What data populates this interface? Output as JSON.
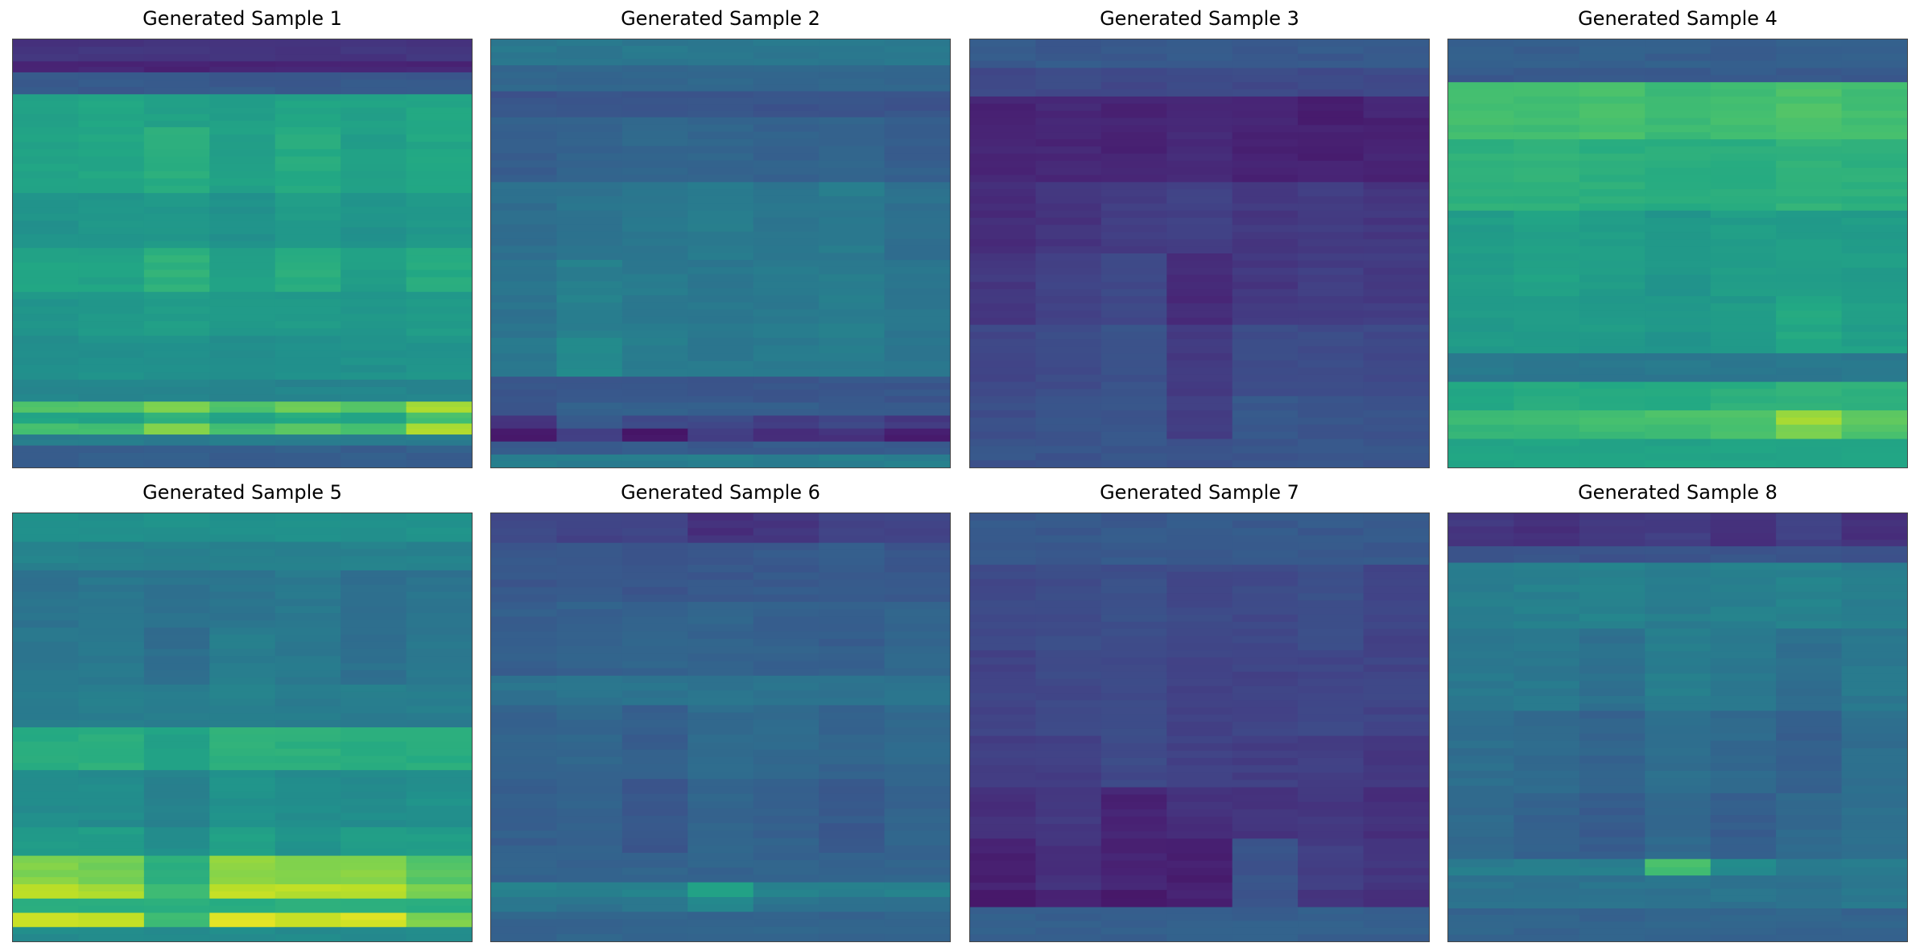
{
  "chart_data": [
    {
      "type": "heatmap",
      "title": "Generated Sample 1",
      "colormap": "viridis",
      "vmin": 0,
      "vmax": 1,
      "cols": 7,
      "rows": [
        {
          "h": 2,
          "base": 0.15,
          "cells": [
            0,
            0,
            0,
            0,
            0,
            0,
            0
          ]
        },
        {
          "h": 1,
          "base": 0.1,
          "cells": [
            0,
            0,
            0,
            0,
            0,
            0,
            0
          ]
        },
        {
          "h": 2,
          "base": 0.28,
          "cells": [
            0,
            0,
            0,
            0,
            0,
            0,
            0
          ]
        },
        {
          "h": 3,
          "base": 0.55,
          "cells": [
            0.02,
            0.04,
            0.02,
            0.01,
            0.03,
            0.02,
            0.04
          ]
        },
        {
          "h": 6,
          "base": 0.56,
          "cells": [
            0.02,
            0.03,
            0.06,
            0.01,
            0.05,
            0.0,
            0.03
          ]
        },
        {
          "h": 5,
          "base": 0.5,
          "cells": [
            0.01,
            0.02,
            0.03,
            0.0,
            0.04,
            0.01,
            0.03
          ]
        },
        {
          "h": 4,
          "base": 0.56,
          "cells": [
            0.02,
            0.02,
            0.08,
            0.01,
            0.06,
            0.0,
            0.05
          ]
        },
        {
          "h": 4,
          "base": 0.52,
          "cells": [
            0.0,
            0.01,
            0.03,
            0.01,
            0.02,
            0.01,
            0.02
          ]
        },
        {
          "h": 4,
          "base": 0.48,
          "cells": [
            0.01,
            0.02,
            0.02,
            0.0,
            0.01,
            0.02,
            0.03
          ]
        },
        {
          "h": 2,
          "base": 0.45,
          "cells": [
            0,
            0,
            0,
            0,
            0,
            0,
            0
          ]
        },
        {
          "h": 1,
          "base": 0.72,
          "cells": [
            0.0,
            0.0,
            0.08,
            0.0,
            0.05,
            0.0,
            0.15
          ]
        },
        {
          "h": 1,
          "base": 0.58,
          "cells": [
            0.0,
            0.0,
            0.06,
            0.0,
            0.03,
            0.0,
            0.12
          ]
        },
        {
          "h": 1,
          "base": 0.7,
          "cells": [
            0.0,
            0.0,
            0.1,
            0.0,
            0.04,
            0.0,
            0.18
          ]
        },
        {
          "h": 1,
          "base": 0.42,
          "cells": [
            0,
            0,
            0,
            0,
            0,
            0,
            0
          ]
        },
        {
          "h": 2,
          "base": 0.3,
          "cells": [
            0,
            0,
            0,
            0,
            0,
            0,
            0
          ]
        }
      ]
    },
    {
      "type": "heatmap",
      "title": "Generated Sample 2",
      "colormap": "viridis",
      "vmin": 0,
      "vmax": 1,
      "cols": 7,
      "rows": [
        {
          "h": 2,
          "base": 0.4,
          "cells": [
            0,
            0,
            0,
            0,
            0,
            0,
            0
          ]
        },
        {
          "h": 2,
          "base": 0.33,
          "cells": [
            0,
            0,
            0,
            0,
            0,
            0,
            0
          ]
        },
        {
          "h": 2,
          "base": 0.26,
          "cells": [
            0,
            0,
            0,
            0,
            0,
            0,
            0
          ]
        },
        {
          "h": 5,
          "base": 0.3,
          "cells": [
            0.0,
            0.01,
            0.03,
            0.02,
            0.01,
            0.02,
            0.0
          ]
        },
        {
          "h": 6,
          "base": 0.36,
          "cells": [
            0.0,
            0.02,
            0.04,
            0.05,
            0.03,
            0.05,
            0.01
          ]
        },
        {
          "h": 6,
          "base": 0.38,
          "cells": [
            0.0,
            0.05,
            0.03,
            0.02,
            0.03,
            0.04,
            0.01
          ]
        },
        {
          "h": 3,
          "base": 0.4,
          "cells": [
            0.0,
            0.06,
            0.02,
            0.0,
            0.01,
            0.02,
            0.0
          ]
        },
        {
          "h": 2,
          "base": 0.27,
          "cells": [
            0,
            0,
            0,
            0,
            0,
            0,
            0
          ]
        },
        {
          "h": 1,
          "base": 0.3,
          "cells": [
            -0.05,
            0.02,
            0.0,
            0.0,
            0.0,
            0.0,
            -0.03
          ]
        },
        {
          "h": 1,
          "base": 0.22,
          "cells": [
            -0.08,
            0.05,
            0.0,
            0.0,
            -0.05,
            0.0,
            -0.06
          ]
        },
        {
          "h": 1,
          "base": 0.12,
          "cells": [
            -0.04,
            0.06,
            -0.05,
            0.05,
            0.0,
            0.02,
            -0.04
          ]
        },
        {
          "h": 1,
          "base": 0.28,
          "cells": [
            0,
            0,
            0,
            0,
            0,
            0,
            0
          ]
        },
        {
          "h": 1,
          "base": 0.42,
          "cells": [
            0,
            0,
            0,
            0,
            0,
            0,
            0
          ]
        }
      ]
    },
    {
      "type": "heatmap",
      "title": "Generated Sample 3",
      "colormap": "viridis",
      "vmin": 0,
      "vmax": 1,
      "cols": 7,
      "rows": [
        {
          "h": 2,
          "base": 0.28,
          "cells": [
            0,
            0,
            0,
            0,
            0,
            0,
            0
          ]
        },
        {
          "h": 2,
          "base": 0.22,
          "cells": [
            0,
            0,
            0,
            0,
            0,
            0,
            0
          ]
        },
        {
          "h": 6,
          "base": 0.1,
          "cells": [
            0.0,
            0.01,
            0.0,
            0.02,
            0.0,
            -0.01,
            0.0
          ]
        },
        {
          "h": 5,
          "base": 0.13,
          "cells": [
            0.0,
            0.02,
            0.05,
            0.06,
            0.03,
            0.04,
            0.03
          ]
        },
        {
          "h": 5,
          "base": 0.12,
          "cells": [
            0.04,
            0.08,
            0.1,
            0.0,
            0.04,
            0.06,
            0.05
          ]
        },
        {
          "h": 5,
          "base": 0.17,
          "cells": [
            0.04,
            0.06,
            0.08,
            0.0,
            0.06,
            0.06,
            0.05
          ]
        },
        {
          "h": 3,
          "base": 0.18,
          "cells": [
            0.06,
            0.08,
            0.08,
            0.0,
            0.1,
            0.08,
            0.08
          ]
        },
        {
          "h": 2,
          "base": 0.26,
          "cells": [
            0,
            0,
            0,
            0,
            0,
            0,
            0
          ]
        }
      ]
    },
    {
      "type": "heatmap",
      "title": "Generated Sample 4",
      "colormap": "viridis",
      "vmin": 0,
      "vmax": 1,
      "cols": 7,
      "rows": [
        {
          "h": 2,
          "base": 0.3,
          "cells": [
            0,
            0,
            0,
            0,
            0,
            0,
            0
          ]
        },
        {
          "h": 1,
          "base": 0.28,
          "cells": [
            0,
            0,
            0,
            0,
            0,
            0,
            0
          ]
        },
        {
          "h": 4,
          "base": 0.68,
          "cells": [
            0.02,
            0.01,
            0.02,
            0.0,
            0.01,
            0.03,
            0.01
          ]
        },
        {
          "h": 5,
          "base": 0.62,
          "cells": [
            0.02,
            0.02,
            0.01,
            0.0,
            0.01,
            0.02,
            0.01
          ]
        },
        {
          "h": 6,
          "base": 0.55,
          "cells": [
            0.0,
            0.02,
            0.0,
            -0.03,
            0.0,
            0.0,
            0.0
          ]
        },
        {
          "h": 4,
          "base": 0.54,
          "cells": [
            0.0,
            0.0,
            0.0,
            -0.02,
            0.0,
            0.06,
            0.02
          ]
        },
        {
          "h": 2,
          "base": 0.4,
          "cells": [
            0,
            0,
            0,
            0,
            0,
            0,
            0
          ]
        },
        {
          "h": 2,
          "base": 0.6,
          "cells": [
            0.0,
            0.01,
            0.01,
            0.02,
            0.03,
            0.05,
            0.03
          ]
        },
        {
          "h": 1,
          "base": 0.68,
          "cells": [
            0.0,
            0.0,
            0.02,
            0.03,
            0.04,
            0.18,
            0.08
          ]
        },
        {
          "h": 1,
          "base": 0.66,
          "cells": [
            0.0,
            0.01,
            0.02,
            0.03,
            0.05,
            0.14,
            0.06
          ]
        },
        {
          "h": 2,
          "base": 0.58,
          "cells": [
            0,
            0,
            0,
            0,
            0,
            0,
            0
          ]
        }
      ]
    },
    {
      "type": "heatmap",
      "title": "Generated Sample 5",
      "colormap": "viridis",
      "vmin": 0,
      "vmax": 1,
      "cols": 7,
      "rows": [
        {
          "h": 2,
          "base": 0.5,
          "cells": [
            0,
            0,
            0,
            0,
            0,
            0,
            0
          ]
        },
        {
          "h": 2,
          "base": 0.44,
          "cells": [
            0,
            0,
            0,
            0,
            0,
            0,
            0
          ]
        },
        {
          "h": 4,
          "base": 0.38,
          "cells": [
            0.0,
            0.01,
            0.0,
            0.0,
            0.02,
            -0.02,
            0.0
          ]
        },
        {
          "h": 4,
          "base": 0.4,
          "cells": [
            0.0,
            0.0,
            -0.04,
            0.02,
            0.0,
            -0.03,
            0.0
          ]
        },
        {
          "h": 3,
          "base": 0.42,
          "cells": [
            0.0,
            0.0,
            0.0,
            0.02,
            0.0,
            0.0,
            0.0
          ]
        },
        {
          "h": 3,
          "base": 0.62,
          "cells": [
            0.0,
            0.01,
            -0.05,
            0.02,
            0.01,
            0.0,
            0.0
          ]
        },
        {
          "h": 4,
          "base": 0.48,
          "cells": [
            0.0,
            0.0,
            -0.04,
            0.02,
            0.0,
            0.0,
            0.02
          ]
        },
        {
          "h": 2,
          "base": 0.55,
          "cells": [
            0.0,
            0.0,
            -0.06,
            0.02,
            -0.04,
            0.0,
            0.0
          ]
        },
        {
          "h": 2,
          "base": 0.78,
          "cells": [
            0.03,
            0.01,
            -0.15,
            0.05,
            0.03,
            0.04,
            -0.05
          ]
        },
        {
          "h": 1,
          "base": 0.85,
          "cells": [
            0.05,
            0.02,
            -0.18,
            0.06,
            0.04,
            0.04,
            -0.05
          ]
        },
        {
          "h": 1,
          "base": 0.62,
          "cells": [
            0,
            0,
            0,
            0,
            0,
            0,
            0
          ]
        },
        {
          "h": 1,
          "base": 0.88,
          "cells": [
            0.05,
            0.02,
            -0.2,
            0.08,
            0.02,
            0.06,
            -0.08
          ]
        },
        {
          "h": 1,
          "base": 0.48,
          "cells": [
            0,
            0,
            0,
            0,
            0,
            0,
            0
          ]
        }
      ]
    },
    {
      "type": "heatmap",
      "title": "Generated Sample 6",
      "colormap": "viridis",
      "vmin": 0,
      "vmax": 1,
      "cols": 7,
      "rows": [
        {
          "h": 2,
          "base": 0.2,
          "cells": [
            0.02,
            0.0,
            0.0,
            -0.06,
            -0.04,
            0.0,
            0.0
          ]
        },
        {
          "h": 4,
          "base": 0.27,
          "cells": [
            0.0,
            0.01,
            0.0,
            0.0,
            0.01,
            0.02,
            0.0
          ]
        },
        {
          "h": 5,
          "base": 0.3,
          "cells": [
            0.0,
            0.01,
            0.02,
            0.02,
            0.01,
            0.0,
            0.03
          ]
        },
        {
          "h": 2,
          "base": 0.38,
          "cells": [
            0,
            0,
            0,
            0,
            0,
            0,
            0
          ]
        },
        {
          "h": 5,
          "base": 0.32,
          "cells": [
            0.0,
            0.01,
            -0.02,
            0.03,
            0.02,
            0.0,
            0.02
          ]
        },
        {
          "h": 5,
          "base": 0.3,
          "cells": [
            0.0,
            0.01,
            -0.03,
            0.02,
            0.01,
            -0.02,
            0.02
          ]
        },
        {
          "h": 2,
          "base": 0.32,
          "cells": [
            0,
            0,
            0,
            0,
            0,
            0,
            0
          ]
        },
        {
          "h": 1,
          "base": 0.44,
          "cells": [
            0.0,
            0.0,
            0.0,
            0.12,
            0.0,
            0.0,
            0.0
          ]
        },
        {
          "h": 1,
          "base": 0.38,
          "cells": [
            0.0,
            0.0,
            0.0,
            0.08,
            0.0,
            0.0,
            0.0
          ]
        },
        {
          "h": 2,
          "base": 0.32,
          "cells": [
            0,
            0,
            0,
            0,
            0,
            0,
            0
          ]
        }
      ]
    },
    {
      "type": "heatmap",
      "title": "Generated Sample 7",
      "colormap": "viridis",
      "vmin": 0,
      "vmax": 1,
      "cols": 7,
      "rows": [
        {
          "h": 3,
          "base": 0.28,
          "cells": [
            0,
            0,
            0,
            0,
            0,
            0,
            0
          ]
        },
        {
          "h": 5,
          "base": 0.22,
          "cells": [
            0.0,
            0.01,
            0.02,
            0.0,
            0.0,
            0.02,
            -0.02
          ]
        },
        {
          "h": 5,
          "base": 0.2,
          "cells": [
            0.0,
            0.02,
            0.03,
            0.0,
            0.0,
            0.01,
            0.0
          ]
        },
        {
          "h": 3,
          "base": 0.18,
          "cells": [
            0.0,
            0.0,
            0.04,
            0.01,
            0.0,
            0.0,
            -0.02
          ]
        },
        {
          "h": 3,
          "base": 0.14,
          "cells": [
            0.0,
            0.02,
            -0.04,
            0.0,
            0.01,
            0.02,
            0.0
          ]
        },
        {
          "h": 3,
          "base": 0.12,
          "cells": [
            -0.03,
            0.02,
            -0.02,
            -0.03,
            0.14,
            0.06,
            0.04
          ]
        },
        {
          "h": 1,
          "base": 0.08,
          "cells": [
            -0.02,
            0.03,
            0.0,
            0.02,
            0.18,
            0.08,
            0.05
          ]
        },
        {
          "h": 2,
          "base": 0.3,
          "cells": [
            0,
            0,
            0,
            0,
            0,
            0,
            0
          ]
        }
      ]
    },
    {
      "type": "heatmap",
      "title": "Generated Sample 8",
      "colormap": "viridis",
      "vmin": 0,
      "vmax": 1,
      "cols": 7,
      "rows": [
        {
          "h": 2,
          "base": 0.14,
          "cells": [
            0.02,
            0.0,
            0.03,
            0.04,
            0.0,
            0.05,
            0.0
          ]
        },
        {
          "h": 1,
          "base": 0.26,
          "cells": [
            0,
            0,
            0,
            0,
            0,
            0,
            0
          ]
        },
        {
          "h": 4,
          "base": 0.42,
          "cells": [
            0.0,
            0.01,
            0.02,
            0.0,
            0.01,
            0.02,
            0.0
          ]
        },
        {
          "h": 5,
          "base": 0.4,
          "cells": [
            0.0,
            0.0,
            -0.03,
            0.02,
            0.0,
            -0.04,
            0.0
          ]
        },
        {
          "h": 5,
          "base": 0.36,
          "cells": [
            0.0,
            -0.02,
            -0.04,
            0.0,
            -0.02,
            -0.06,
            0.0
          ]
        },
        {
          "h": 4,
          "base": 0.34,
          "cells": [
            0.0,
            -0.03,
            -0.05,
            0.0,
            -0.04,
            0.0,
            0.02
          ]
        },
        {
          "h": 1,
          "base": 0.42,
          "cells": [
            0.0,
            0.0,
            0.0,
            0.28,
            0.05,
            0.0,
            0.0
          ]
        },
        {
          "h": 2,
          "base": 0.38,
          "cells": [
            0.0,
            0.0,
            0.0,
            0.0,
            0.0,
            0.0,
            0.02
          ]
        },
        {
          "h": 2,
          "base": 0.32,
          "cells": [
            0,
            0,
            0,
            0,
            0,
            0,
            0
          ]
        }
      ]
    }
  ]
}
